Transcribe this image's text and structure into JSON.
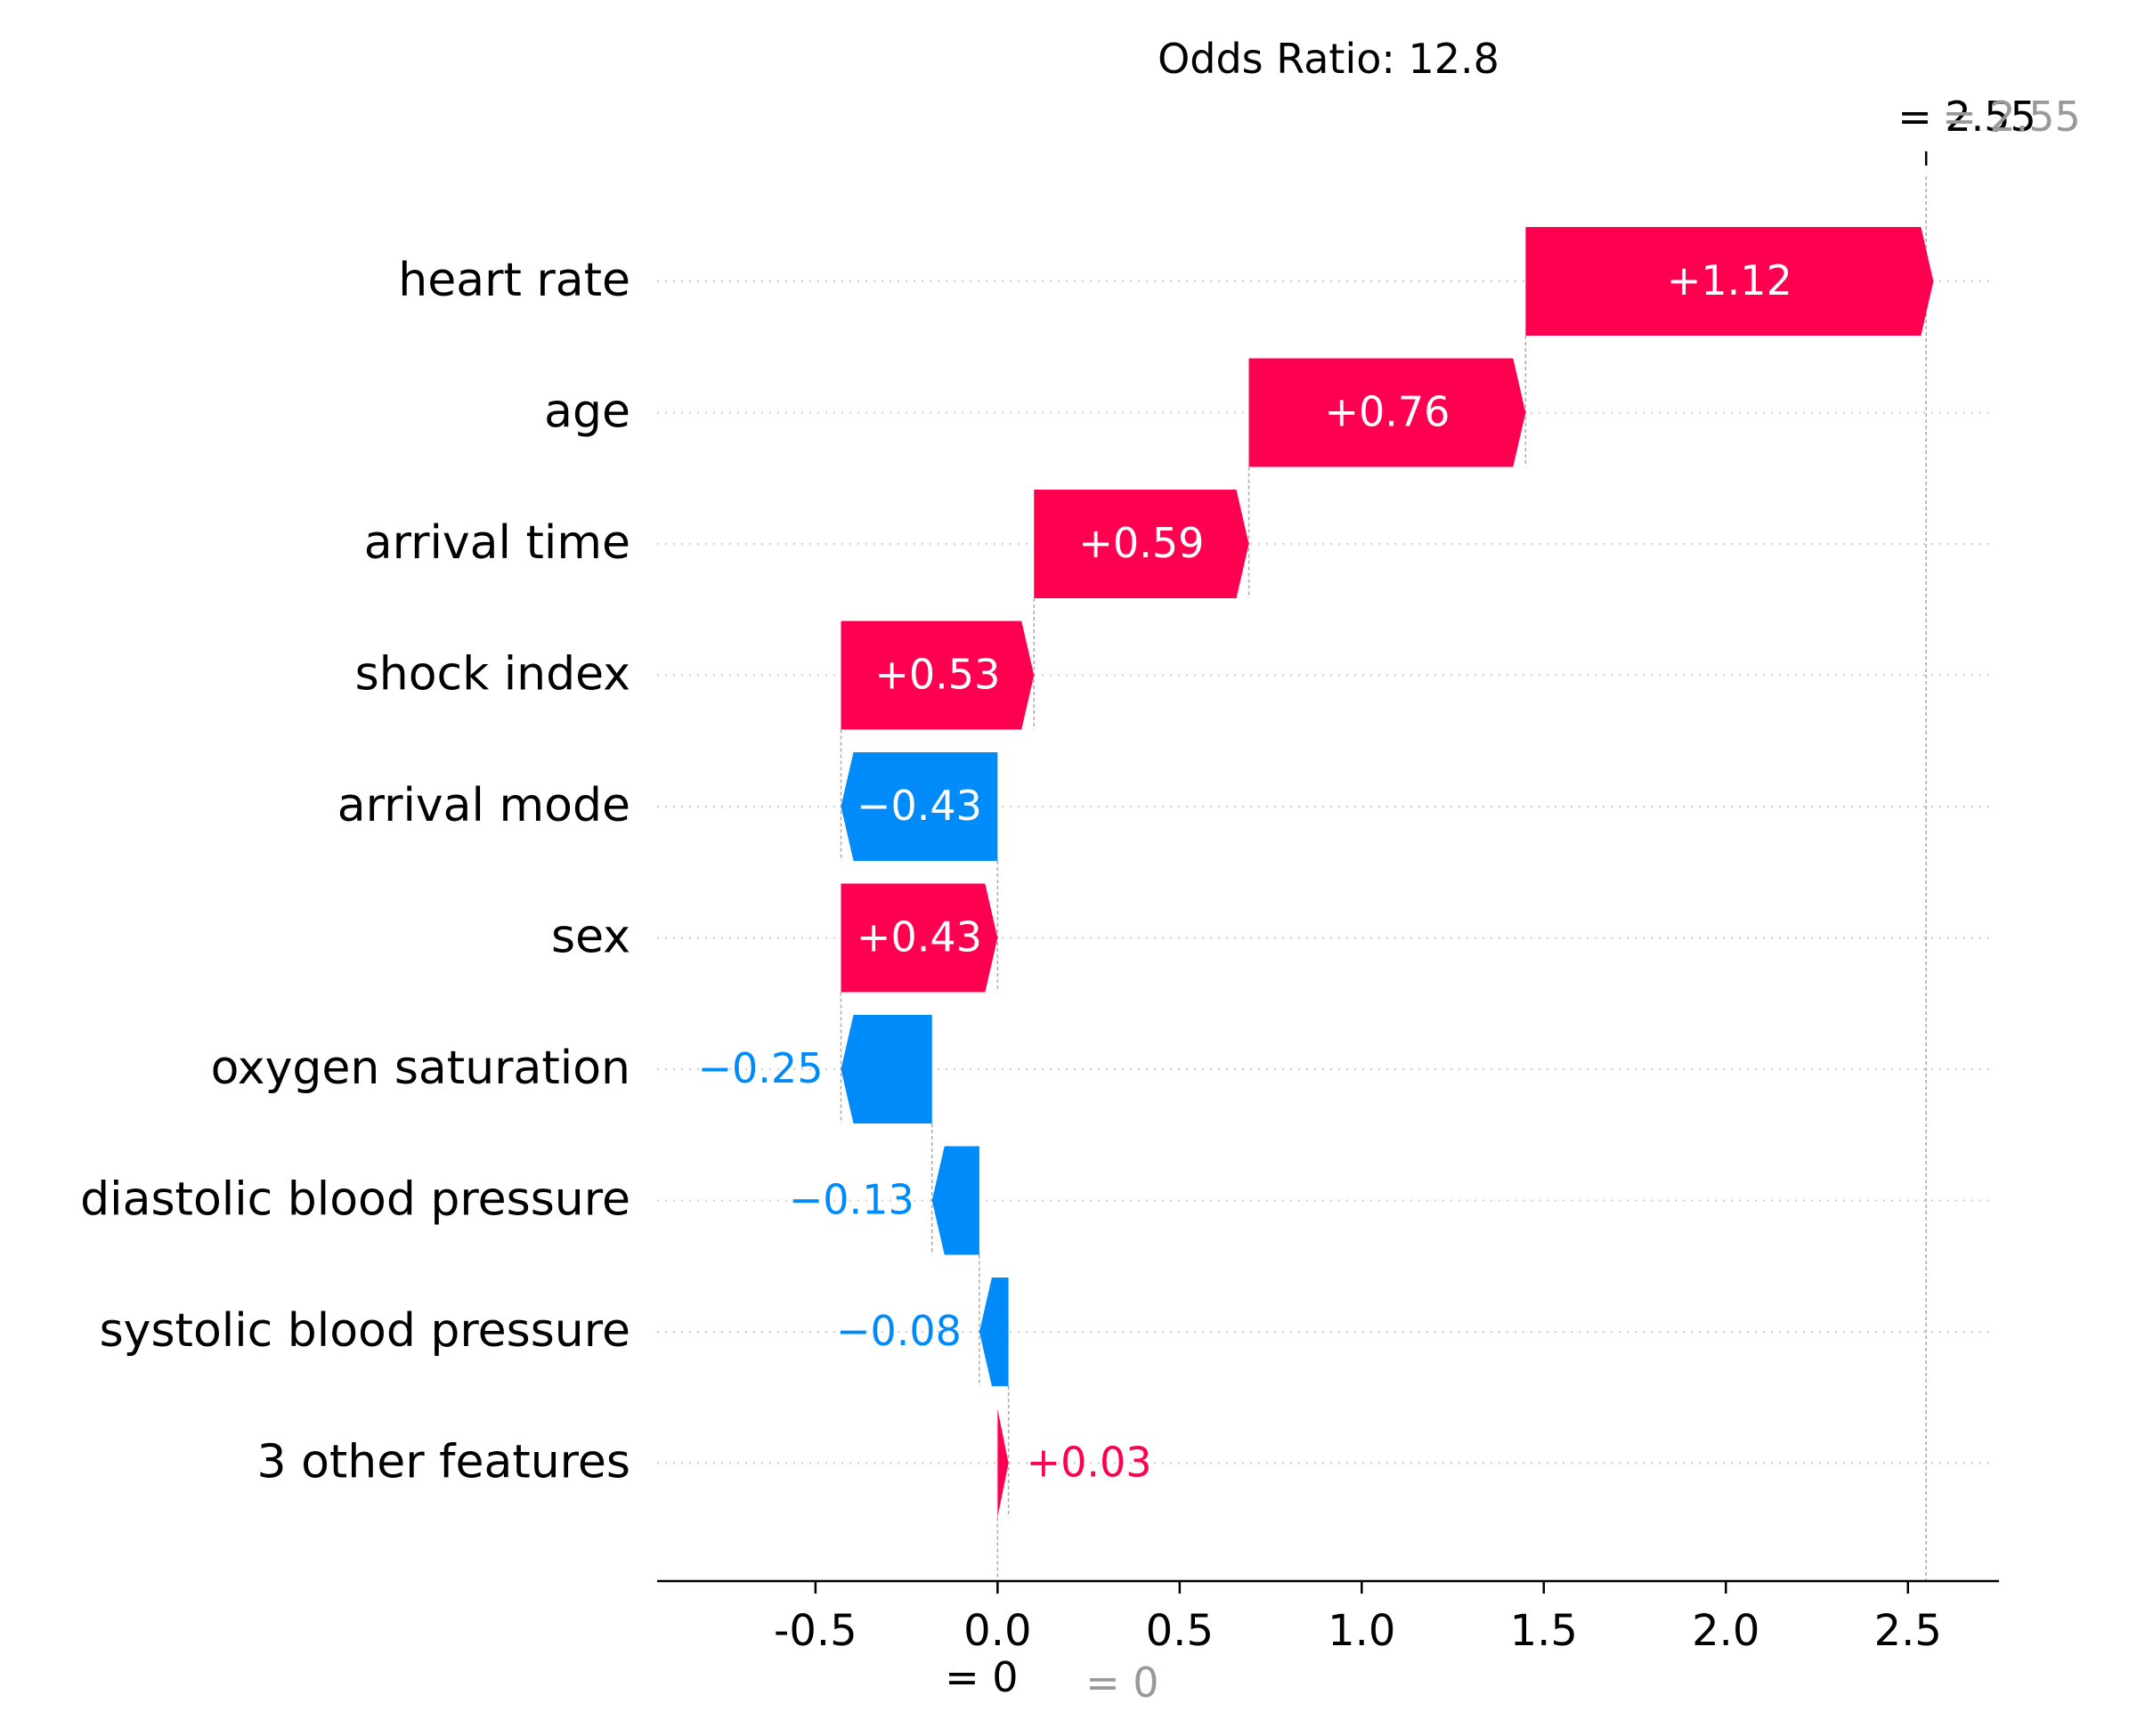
{
  "chart_data": {
    "type": "waterfall",
    "title": "Odds Ratio: 12.8",
    "base_value": 0,
    "final_value": 2.55,
    "top_label": "= 2.55",
    "top_label_gray": "= 2.55",
    "bottom_label": "= 0",
    "bottom_label_gray": "= 0",
    "features": [
      {
        "name": "heart rate",
        "value": 1.12,
        "label": "+1.12"
      },
      {
        "name": "age",
        "value": 0.76,
        "label": "+0.76"
      },
      {
        "name": "arrival time",
        "value": 0.59,
        "label": "+0.59"
      },
      {
        "name": "shock index",
        "value": 0.53,
        "label": "+0.53"
      },
      {
        "name": "arrival mode",
        "value": -0.43,
        "label": "−0.43"
      },
      {
        "name": "sex",
        "value": 0.43,
        "label": "+0.43"
      },
      {
        "name": "oxygen saturation",
        "value": -0.25,
        "label": "−0.25"
      },
      {
        "name": "diastolic blood pressure",
        "value": -0.13,
        "label": "−0.13"
      },
      {
        "name": "systolic blood pressure",
        "value": -0.08,
        "label": "−0.08"
      },
      {
        "name": "3 other features",
        "value": 0.03,
        "label": "+0.03"
      }
    ],
    "x_ticks": [
      -0.5,
      0.0,
      0.5,
      1.0,
      1.5,
      2.0,
      2.5
    ],
    "x_tick_labels": [
      "-0.5",
      "0.0",
      "0.5",
      "1.0",
      "1.5",
      "2.0",
      "2.5"
    ],
    "xlim": [
      -0.93,
      2.75
    ],
    "colors": {
      "positive": "#ff0051",
      "negative": "#008bfb",
      "gray": "#999999",
      "axis": "#000000"
    }
  }
}
